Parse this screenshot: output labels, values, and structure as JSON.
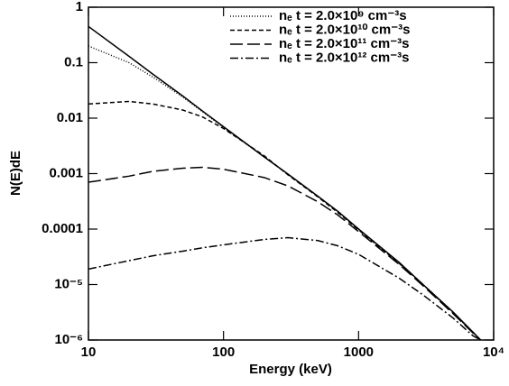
{
  "chart_data": {
    "type": "line",
    "xlabel": "Energy (keV)",
    "ylabel": "N(E)dE",
    "log_x": true,
    "log_y": true,
    "xlim": [
      10,
      10000
    ],
    "ylim": [
      1e-06,
      1
    ],
    "xticks": [
      10,
      100,
      1000,
      {
        "value": 10000,
        "label": "10⁴"
      }
    ],
    "yticks": [
      {
        "value": 1e-06,
        "label": "10⁻⁶"
      },
      {
        "value": 1e-05,
        "label": "10⁻⁵"
      },
      0.0001,
      0.001,
      0.01,
      0.1,
      1
    ],
    "legend": "upper right",
    "x": [
      10,
      20,
      30,
      50,
      70,
      100,
      200,
      300,
      500,
      700,
      1000,
      2000,
      3000,
      5000,
      7000,
      8000
    ],
    "series": [
      {
        "color": "#000000",
        "dash": "none",
        "values": [
          0.45,
          0.13,
          0.062,
          0.025,
          0.0134,
          0.007,
          0.002,
          0.00098,
          0.00039,
          0.00021,
          0.0001,
          2.5e-05,
          1e-05,
          3.2e-06,
          1.4e-06,
          1e-06
        ]
      },
      {
        "name": "nₑ t = 2.0×10⁹ cm⁻³s",
        "color": "#000000",
        "dash": "1,2",
        "values": [
          0.2,
          0.1,
          0.055,
          0.024,
          0.013,
          0.0068,
          0.002,
          0.00097,
          0.00039,
          0.00021,
          0.0001,
          2.5e-05,
          1e-05,
          3.2e-06,
          1.4e-06,
          1e-06
        ]
      },
      {
        "name": "nₑ t = 2.0×10¹⁰ cm⁻³s",
        "color": "#000000",
        "dash": "5,3",
        "values": [
          0.018,
          0.02,
          0.018,
          0.014,
          0.0105,
          0.0065,
          0.0021,
          0.00095,
          0.00038,
          0.0002,
          9.7e-05,
          2.4e-05,
          1e-05,
          3.1e-06,
          1.4e-06,
          1e-06
        ]
      },
      {
        "name": "nₑ t = 2.0×10¹¹ cm⁻³s",
        "color": "#000000",
        "dash": "14,5",
        "values": [
          0.0007,
          0.0009,
          0.0011,
          0.00125,
          0.0013,
          0.0012,
          0.00085,
          0.0006,
          0.00031,
          0.00018,
          9e-05,
          2.3e-05,
          9.5e-06,
          3e-06,
          1.35e-06,
          1e-06
        ]
      },
      {
        "name": "nₑ t = 2.0×10¹² cm⁻³s",
        "color": "#000000",
        "dash": "9,3,2,3",
        "values": [
          1.9e-05,
          2.7e-05,
          3.3e-05,
          4e-05,
          4.6e-05,
          5.2e-05,
          6.5e-05,
          7e-05,
          6.2e-05,
          5e-05,
          3.5e-05,
          1.3e-05,
          6.5e-06,
          2.5e-06,
          1.2e-06,
          1e-06
        ]
      }
    ]
  }
}
